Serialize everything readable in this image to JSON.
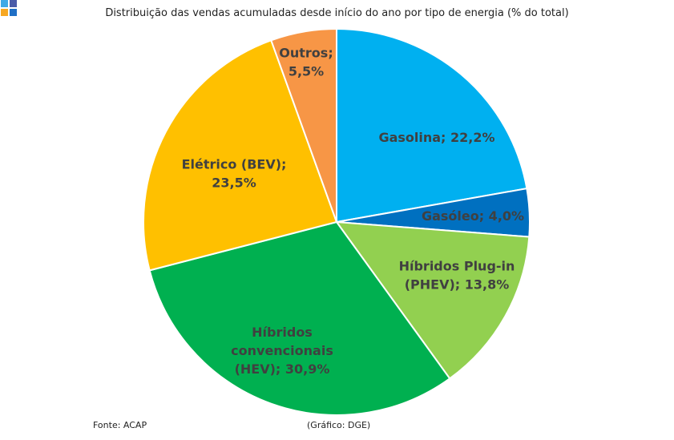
{
  "title": "Distribuição das vendas acumuladas desde início do ano por tipo de energia (% do total)",
  "source": "Fonte: ACAP",
  "credit": "(Gráfico: DGE)",
  "logo_colors": [
    "#4A5BA8",
    "#1F6FC5",
    "#F7A823",
    "#3FA9E6"
  ],
  "chart_data": {
    "type": "pie",
    "title": "Distribuição das vendas acumuladas desde início do ano por tipo de energia (% do total)",
    "start": "top",
    "direction": "clockwise",
    "legend": "none",
    "slices": [
      {
        "label": "Gasolina",
        "value": 22.2,
        "display": [
          "Gasolina; 22,2%"
        ],
        "color": "#00B0F0",
        "text_color": "#404040"
      },
      {
        "label": "Gasóleo",
        "value": 4.0,
        "display": [
          "Gasóleo; 4,0%"
        ],
        "color": "#0070C0",
        "text_color": "#404040"
      },
      {
        "label": "Híbridos Plug-in (PHEV)",
        "value": 13.8,
        "display": [
          "Híbridos Plug-in",
          "(PHEV); 13,8%"
        ],
        "color": "#92D050",
        "text_color": "#404040"
      },
      {
        "label": "Híbridos convencionais (HEV)",
        "value": 30.9,
        "display": [
          "Híbridos",
          "convencionais",
          "(HEV); 30,9%"
        ],
        "color": "#00B050",
        "text_color": "#404040"
      },
      {
        "label": "Elétrico (BEV)",
        "value": 23.5,
        "display": [
          "Elétrico (BEV);",
          "23,5%"
        ],
        "color": "#FFC000",
        "text_color": "#404040"
      },
      {
        "label": "Outros",
        "value": 5.5,
        "display": [
          "Outros;",
          "5,5%"
        ],
        "color": "#F79646",
        "text_color": "#404040"
      }
    ]
  }
}
